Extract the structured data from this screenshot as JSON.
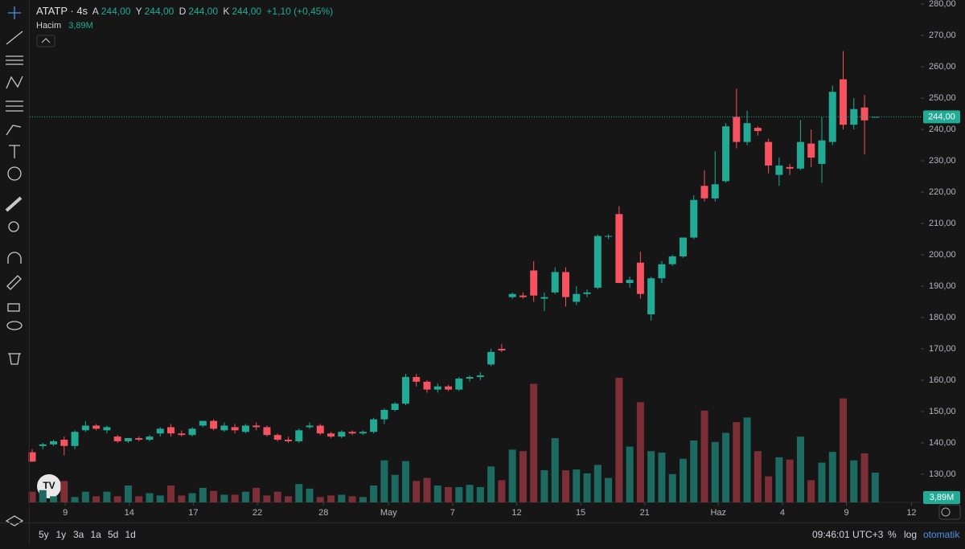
{
  "header": {
    "symbol": "ATATP · 4s",
    "open_label": "A",
    "open": "244,00",
    "high_label": "Y",
    "high": "244,00",
    "low_label": "D",
    "low": "244,00",
    "close_label": "K",
    "close": "244,00",
    "change": "+1,10 (+0,45%)",
    "volume_label": "Hacim",
    "volume": "3,89M"
  },
  "chart_data": {
    "type": "candlestick",
    "up_color": "#22ab94",
    "down_color": "#f7525f",
    "volume_up_color": "#1d6b60",
    "volume_down_color": "#7d2f38",
    "ylim": [
      121,
      281.3
    ],
    "volume_ylim": [
      0,
      65.7
    ],
    "yticks": [
      {
        "value": 130,
        "label": "130,00"
      },
      {
        "value": 140,
        "label": "140,00"
      },
      {
        "value": 150,
        "label": "150,00"
      },
      {
        "value": 160,
        "label": "160,00"
      },
      {
        "value": 170,
        "label": "170,00"
      },
      {
        "value": 180,
        "label": "180,00"
      },
      {
        "value": 190,
        "label": "190,00"
      },
      {
        "value": 200,
        "label": "200,00"
      },
      {
        "value": 210,
        "label": "210,00"
      },
      {
        "value": 220,
        "label": "220,00"
      },
      {
        "value": 230,
        "label": "230,00"
      },
      {
        "value": 240,
        "label": "240,00"
      },
      {
        "value": 250,
        "label": "250,00"
      },
      {
        "value": 260,
        "label": "260,00"
      },
      {
        "value": 270,
        "label": "270,00"
      },
      {
        "value": 280,
        "label": "280,00"
      }
    ],
    "xticks": [
      {
        "value": 3.1,
        "label": "9"
      },
      {
        "value": 9.1,
        "label": "14"
      },
      {
        "value": 15.1,
        "label": "17"
      },
      {
        "value": 21.1,
        "label": "22"
      },
      {
        "value": 27.3,
        "label": "28"
      },
      {
        "value": 33.4,
        "label": "May"
      },
      {
        "value": 39.4,
        "label": "7"
      },
      {
        "value": 45.4,
        "label": "12"
      },
      {
        "value": 51.4,
        "label": "15"
      },
      {
        "value": 57.4,
        "label": "21"
      },
      {
        "value": 64.3,
        "label": "Haz"
      },
      {
        "value": 70.3,
        "label": "4"
      },
      {
        "value": 76.3,
        "label": "9"
      },
      {
        "value": 82.4,
        "label": "12"
      }
    ],
    "open": [
      137,
      139,
      139.5,
      141,
      139,
      144,
      145.5,
      144,
      142,
      140.5,
      141.5,
      141,
      143,
      145,
      143,
      142.5,
      145.5,
      147,
      144,
      145,
      143.5,
      145.5,
      145,
      142.5,
      141,
      140.5,
      145,
      145.5,
      143,
      142,
      143.5,
      143,
      143.5,
      147.5,
      150.5,
      152.5,
      161,
      159.5,
      157,
      158,
      157,
      160.5,
      161,
      165,
      170,
      186.5,
      187,
      195,
      186,
      188,
      194.5,
      185,
      187.5,
      189.5,
      206,
      213,
      191,
      197.5,
      181,
      192.5,
      197,
      199.5,
      205.5,
      222,
      218,
      223.5,
      244,
      236,
      240.5,
      236,
      225.5,
      228,
      227.5,
      235.5,
      229,
      236,
      256,
      241.5,
      247,
      244
    ],
    "high": [
      138,
      140,
      141,
      142,
      144,
      147,
      146,
      145.5,
      142.5,
      141.5,
      142,
      142.5,
      145,
      146,
      144,
      145,
      147,
      147.5,
      146.5,
      146,
      146,
      146.5,
      145.5,
      143,
      142,
      144.5,
      146.5,
      146,
      143.5,
      144,
      144,
      144,
      148,
      151,
      153,
      162,
      162,
      160,
      159,
      158.5,
      161,
      161.5,
      162.5,
      170,
      171.5,
      188,
      188,
      198,
      188,
      196,
      196,
      190,
      189,
      206.5,
      206.5,
      215.5,
      193,
      201,
      193,
      198,
      200,
      205.5,
      219,
      227,
      233,
      242,
      253,
      246,
      241,
      237,
      231,
      229,
      243,
      240,
      244,
      254,
      265,
      250,
      251,
      244
    ],
    "low": [
      134,
      138,
      139,
      136,
      138,
      143.5,
      144,
      143,
      140,
      140,
      140.5,
      140.5,
      142,
      142,
      142,
      142,
      145,
      144,
      143.5,
      143,
      143,
      144,
      142,
      140.5,
      140,
      140,
      144.5,
      142.5,
      141.5,
      141.5,
      142.5,
      142.5,
      143,
      146,
      150,
      152,
      158,
      156,
      156,
      156.5,
      156.5,
      159.5,
      160,
      164.5,
      169,
      186,
      186,
      185,
      182,
      187.5,
      183.5,
      184,
      186.5,
      189,
      205,
      191,
      189.5,
      186,
      179,
      191,
      196.5,
      199,
      205,
      217,
      217,
      223,
      234,
      235,
      238,
      226,
      222,
      225.5,
      227,
      228,
      223,
      235,
      240,
      240,
      232,
      244
    ],
    "close": [
      134,
      139.5,
      140.5,
      139,
      143.5,
      145.5,
      144.5,
      145,
      140.5,
      141.5,
      141,
      142,
      144.5,
      143,
      142.5,
      144.5,
      147,
      144.5,
      145.5,
      144,
      145.5,
      145,
      142.5,
      141,
      140.5,
      144,
      145.5,
      143,
      142,
      143.5,
      143,
      143.5,
      147.5,
      150.5,
      152.5,
      161,
      159.5,
      157,
      158,
      157,
      160.5,
      161,
      161.5,
      169,
      169.5,
      187.5,
      186.5,
      187,
      186.5,
      194.5,
      186.5,
      187.5,
      188,
      206,
      206,
      191,
      192,
      187.5,
      192.5,
      197,
      199.5,
      205.5,
      217.5,
      218,
      222.5,
      241,
      236,
      242,
      239.5,
      228.5,
      228.5,
      227.5,
      236,
      231,
      236.5,
      252,
      241.5,
      246.5,
      242.9,
      244
    ],
    "volume": [
      1.4,
      1.6,
      0.8,
      2.8,
      0.7,
      1.4,
      0.8,
      1.4,
      0.8,
      2.2,
      0.8,
      1.2,
      0.9,
      2.2,
      0.9,
      1.2,
      1.9,
      1.5,
      1.0,
      1.0,
      1.4,
      1.9,
      0.9,
      1.4,
      0.8,
      2.4,
      1.8,
      0.7,
      0.9,
      1.0,
      0.8,
      0.7,
      2.2,
      5.5,
      3.6,
      5.4,
      2.8,
      3.2,
      2.2,
      2.0,
      2.0,
      2.3,
      2.0,
      4.7,
      2.9,
      6.9,
      6.7,
      15.5,
      4.2,
      8.4,
      4.2,
      4.3,
      3.8,
      4.9,
      3.2,
      16.3,
      7.3,
      13.1,
      6.7,
      6.5,
      3.7,
      5.7,
      8.1,
      12.0,
      7.9,
      9.1,
      10.5,
      11.1,
      6.7,
      3.4,
      5.9,
      5.6,
      8.6,
      2.9,
      5.2,
      6.6,
      13.6,
      5.5,
      6.4,
      3.89
    ],
    "last_price_label": "244,00",
    "last_volume_label": "3,89M"
  },
  "footer": {
    "ranges": [
      "5y",
      "1y",
      "3a",
      "1a",
      "5d",
      "1d"
    ],
    "time": "09:46:01 UTC+3",
    "percent": "%",
    "log": "log",
    "auto": "otomatik"
  }
}
